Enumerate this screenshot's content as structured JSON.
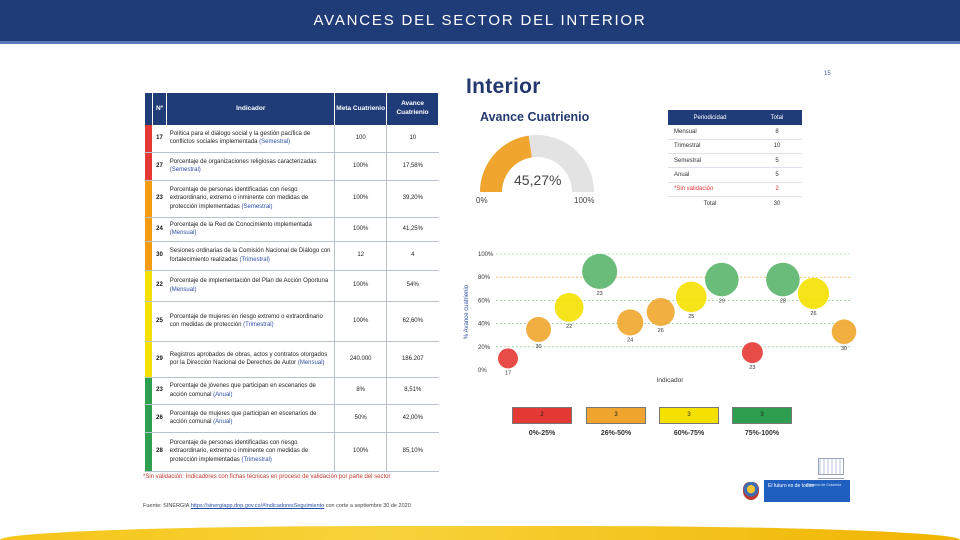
{
  "header": {
    "title": "AVANCES DEL SECTOR DEL INTERIOR"
  },
  "slide": {
    "title": "Interior",
    "page_number": "15"
  },
  "table": {
    "headers": {
      "no": "Nº",
      "indicator": "Indicador",
      "goal": "Meta Cuatrienio",
      "progress": "Avance Cuatrienio"
    },
    "rows": [
      {
        "n": "17",
        "color": "#e53935",
        "text": "Política para el diálogo social y la gestión pacífica de conflictos sociales implementada",
        "period": "(Semestral)",
        "goal": "100",
        "progress": "10"
      },
      {
        "n": "27",
        "color": "#e53935",
        "text": "Porcentaje de organizaciones religiosas caracterizadas",
        "period": "(Semestral)",
        "goal": "100%",
        "progress": "17,58%"
      },
      {
        "n": "23",
        "color": "#f39c12",
        "text": "Porcentaje de personas identificadas con riesgo extraordinario, extremo o inminente con medidas de protección implementadas",
        "period": "(Semestral)",
        "goal": "100%",
        "progress": "39,20%"
      },
      {
        "n": "24",
        "color": "#f39c12",
        "text": "Porcentaje de la Red de Conocimiento implementada",
        "period": "(Mensual)",
        "goal": "100%",
        "progress": "41,25%"
      },
      {
        "n": "30",
        "color": "#f39c12",
        "text": "Sesiones ordinarias de la Comisión Nacional de Diálogo con fortalecimiento realizadas",
        "period": "(Trimestral)",
        "goal": "12",
        "progress": "4"
      },
      {
        "n": "22",
        "color": "#f4e100",
        "text": "Porcentaje de implementación del Plan de Acción Oportuna",
        "period": "(Mensual)",
        "goal": "100%",
        "progress": "54%"
      },
      {
        "n": "25",
        "color": "#f4e100",
        "text": "Porcentaje de mujeres en riesgo extremo o extraordinario con medidas de protección",
        "period": "(Trimestral)",
        "goal": "100%",
        "progress": "62,60%"
      },
      {
        "n": "29",
        "color": "#f4e100",
        "text": "Registros aprobados de obras, actos y contratos otorgados por la Dirección Nacional de Derechos de Autor",
        "period": "(Mensual)",
        "goal": "240.000",
        "progress": "186.207"
      },
      {
        "n": "23",
        "color": "#2e9e4f",
        "text": "Porcentaje de jóvenes que participan en escenarios de acción comunal",
        "period": "(Anual)",
        "goal": "8%",
        "progress": "8,51%"
      },
      {
        "n": "26",
        "color": "#2e9e4f",
        "text": "Porcentaje de mujeres que participan en escenarios de acción comunal",
        "period": "(Anual)",
        "goal": "50%",
        "progress": "42,00%"
      },
      {
        "n": "28",
        "color": "#2e9e4f",
        "text": "Porcentaje de personas identificadas con riesgo extraordinario, extremo o inminente con medidas de protección implementadas",
        "period": "(Trimestral)",
        "goal": "100%",
        "progress": "85,10%"
      }
    ]
  },
  "note": "*Sin validación: Indicadores con fichas técnicas en proceso de validación por parte del sector",
  "source": {
    "prefix": "Fuente: SINERGIA",
    "link": "https://sinergiapp.dnp.gov.co/#IndicadoresSeguimiento",
    "suffix": "con corte a septiembre 30 de 2020"
  },
  "gauge": {
    "title": "Avance Cuatrienio",
    "value": 45.27,
    "value_label": "45,27%",
    "min_label": "0%",
    "max_label": "100%",
    "fill_color": "#f0a62e",
    "track_color": "#e3e3e3"
  },
  "periodicity": {
    "headers": [
      "Periodicidad",
      "Total"
    ],
    "rows": [
      {
        "label": "Mensual",
        "total": "8",
        "highlight": false
      },
      {
        "label": "Trimestral",
        "total": "10",
        "highlight": false
      },
      {
        "label": "Semestral",
        "total": "5",
        "highlight": false
      },
      {
        "label": "Anual",
        "total": "5",
        "highlight": false
      },
      {
        "label": "*Sin validación",
        "total": "2",
        "highlight": true
      }
    ],
    "total": {
      "label": "Total",
      "value": "30"
    }
  },
  "chart_data": {
    "type": "scatter",
    "ylabel": "% Avance cuatrienio",
    "xlabel": "Indicador",
    "y_ticks": [
      "0%",
      "20%",
      "40%",
      "60%",
      "80%",
      "100%"
    ],
    "ylim": [
      0,
      100
    ],
    "points": [
      {
        "label": "17",
        "y": 10,
        "color": "#e53935"
      },
      {
        "label": "30",
        "y": 35,
        "color": "#f0a62e"
      },
      {
        "label": "22",
        "y": 54,
        "color": "#f4e100"
      },
      {
        "label": "23",
        "y": 85,
        "color": "#59b56b"
      },
      {
        "label": "24",
        "y": 41,
        "color": "#f0a62e"
      },
      {
        "label": "26",
        "y": 50,
        "color": "#f0a62e"
      },
      {
        "label": "25",
        "y": 63,
        "color": "#f4e100"
      },
      {
        "label": "29",
        "y": 78,
        "color": "#59b56b"
      },
      {
        "label": "23",
        "y": 15,
        "color": "#e53935"
      },
      {
        "label": "28",
        "y": 78,
        "color": "#59b56b"
      },
      {
        "label": "26",
        "y": 66,
        "color": "#f4e100"
      },
      {
        "label": "30",
        "y": 33,
        "color": "#f0a62e"
      }
    ]
  },
  "legend": [
    {
      "count": "2",
      "color": "#e53935",
      "range": "0%-25%"
    },
    {
      "count": "3",
      "color": "#f0a62e",
      "range": "26%-50%"
    },
    {
      "count": "3",
      "color": "#f4e100",
      "range": "60%-75%"
    },
    {
      "count": "3",
      "color": "#2e9e4f",
      "range": "75%-100%"
    }
  ],
  "footer": {
    "logo_text": "El futuro es de todos",
    "logo_sub": "Gobierno de Colombia"
  }
}
